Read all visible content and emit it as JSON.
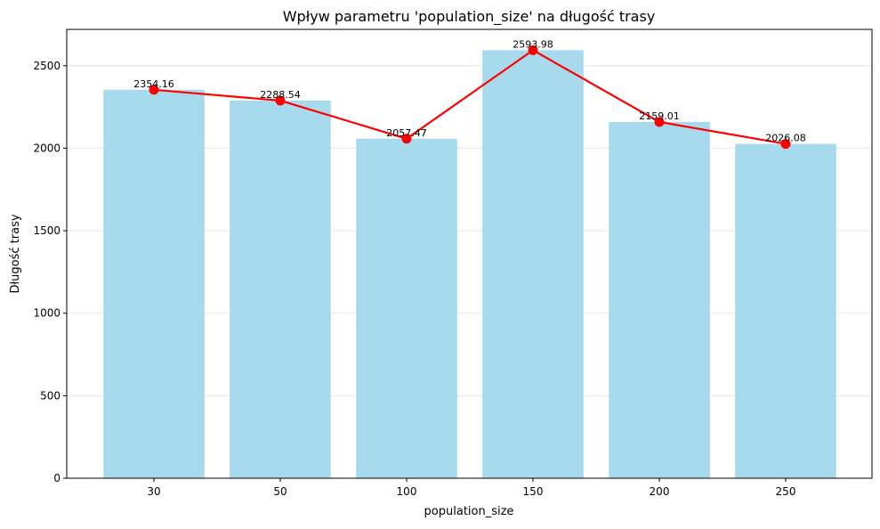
{
  "chart_data": {
    "type": "bar",
    "title": "Wpływ parametru 'population_size' na długość trasy",
    "xlabel": "population_size",
    "ylabel": "Długość trasy",
    "categories": [
      "30",
      "50",
      "100",
      "150",
      "200",
      "250"
    ],
    "values": [
      2354.16,
      2288.54,
      2057.47,
      2593.98,
      2159.01,
      2026.08
    ],
    "data_labels": [
      "2354.16",
      "2288.54",
      "2057.47",
      "2593.98",
      "2159.01",
      "2026.08"
    ],
    "ylim": [
      0,
      2720
    ],
    "yticks": [
      0,
      500,
      1000,
      1500,
      2000,
      2500
    ],
    "ytick_labels": [
      "0",
      "500",
      "1000",
      "1500",
      "2000",
      "2500"
    ],
    "grid": "horizontal",
    "legend": "none",
    "series": [
      {
        "type": "bar",
        "values": [
          2354.16,
          2288.54,
          2057.47,
          2593.98,
          2159.01,
          2026.08
        ]
      },
      {
        "type": "line",
        "values": [
          2354.16,
          2288.54,
          2057.47,
          2593.98,
          2159.01,
          2026.08
        ]
      }
    ],
    "colors": {
      "bar": "#a8daed",
      "line": "#ff0000",
      "grid": "#e6e6e6"
    }
  }
}
